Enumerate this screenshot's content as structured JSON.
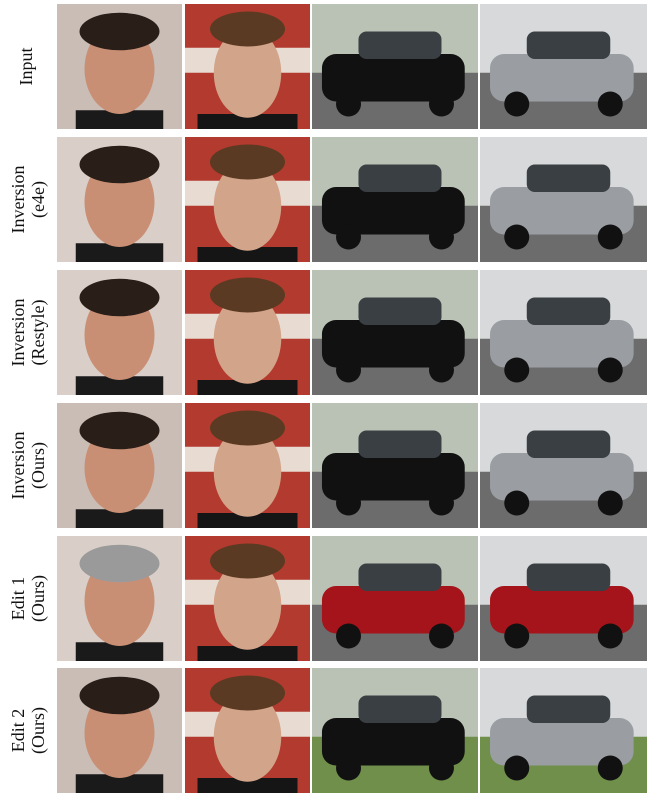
{
  "rows": [
    {
      "label": [
        "Input"
      ]
    },
    {
      "label": [
        "Inversion",
        "(e4e)"
      ]
    },
    {
      "label": [
        "Inversion",
        "(Restyle)"
      ]
    },
    {
      "label": [
        "Inversion",
        "(Ours)"
      ]
    },
    {
      "label": [
        "Edit 1",
        "(Ours)"
      ]
    },
    {
      "label": [
        "Edit 2",
        "(Ours)"
      ]
    }
  ]
}
